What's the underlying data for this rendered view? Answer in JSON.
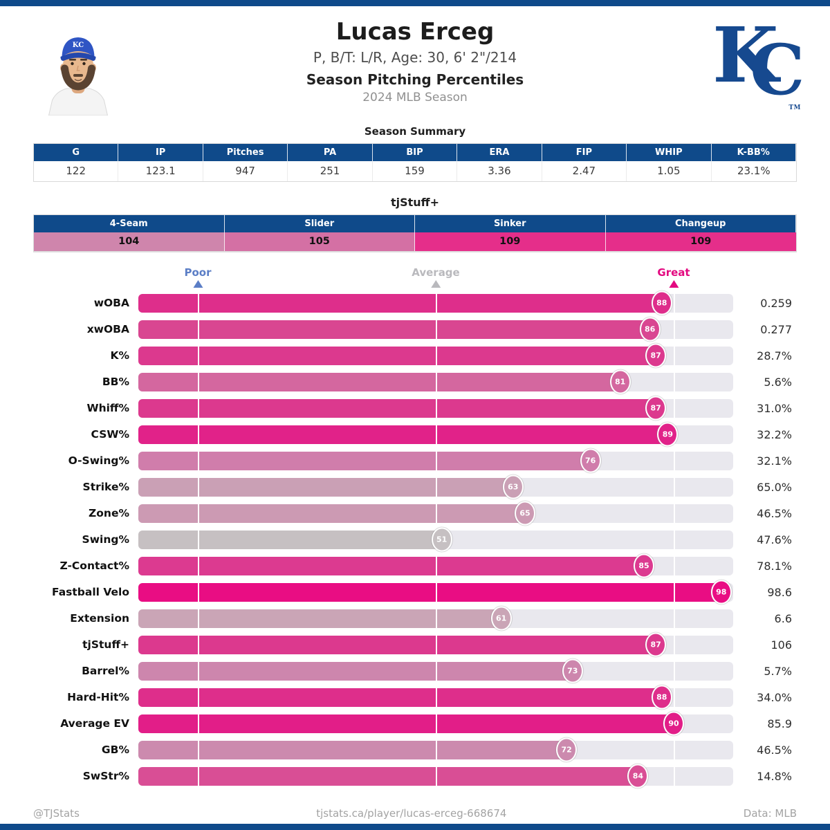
{
  "brand": {
    "bar_blue": "#0f4a8a",
    "royals_blue": "#16498f",
    "magenta": "#e5077f"
  },
  "header": {
    "name": "Lucas Erceg",
    "bio": "P, B/T: L/R, Age: 30, 6' 2\"/214",
    "subtitle": "Season Pitching Percentiles",
    "season": "2024 MLB Season",
    "logo": {
      "k": "K",
      "c": "C",
      "tm": "TM"
    }
  },
  "season_summary": {
    "title": "Season Summary",
    "columns": [
      "G",
      "IP",
      "Pitches",
      "PA",
      "BIP",
      "ERA",
      "FIP",
      "WHIP",
      "K-BB%"
    ],
    "values": [
      "122",
      "123.1",
      "947",
      "251",
      "159",
      "3.36",
      "2.47",
      "1.05",
      "23.1%"
    ]
  },
  "tjstuff": {
    "title": "tjStuff+",
    "columns": [
      "4-Seam",
      "Slider",
      "Sinker",
      "Changeup"
    ],
    "values": [
      "104",
      "105",
      "109",
      "109"
    ],
    "value_colors": [
      "#cf85ac",
      "#d470a4",
      "#e52e8a",
      "#e52e8a"
    ]
  },
  "chart_data": {
    "type": "bar",
    "title": "Season Pitching Percentiles",
    "subtitle": "2024 MLB Season",
    "xlim": [
      0,
      100
    ],
    "track_color": "#e9e8ee",
    "reference_lines": [
      10,
      50,
      90
    ],
    "axis_markers": [
      {
        "label": "Poor",
        "position": 10,
        "color": "#5b7ec6"
      },
      {
        "label": "Average",
        "position": 50,
        "color": "#b9b9bd"
      },
      {
        "label": "Great",
        "position": 90,
        "color": "#e30980"
      }
    ],
    "rows": [
      {
        "label": "wOBA",
        "percentile": 88,
        "value": "0.259",
        "color": "#de2e8b"
      },
      {
        "label": "xwOBA",
        "percentile": 86,
        "value": "0.277",
        "color": "#d94691"
      },
      {
        "label": "K%",
        "percentile": 87,
        "value": "28.7%",
        "color": "#dc398e"
      },
      {
        "label": "BB%",
        "percentile": 81,
        "value": "5.6%",
        "color": "#d4679f"
      },
      {
        "label": "Whiff%",
        "percentile": 87,
        "value": "31.0%",
        "color": "#dc398e"
      },
      {
        "label": "CSW%",
        "percentile": 89,
        "value": "32.2%",
        "color": "#e12289"
      },
      {
        "label": "O-Swing%",
        "percentile": 76,
        "value": "32.1%",
        "color": "#d07dab"
      },
      {
        "label": "Strike%",
        "percentile": 63,
        "value": "65.0%",
        "color": "#caa0b5"
      },
      {
        "label": "Zone%",
        "percentile": 65,
        "value": "46.5%",
        "color": "#cc9ab3"
      },
      {
        "label": "Swing%",
        "percentile": 51,
        "value": "47.6%",
        "color": "#c6c0c2"
      },
      {
        "label": "Z-Contact%",
        "percentile": 85,
        "value": "78.1%",
        "color": "#dc3a90"
      },
      {
        "label": "Fastball Velo",
        "percentile": 98,
        "value": "98.6",
        "color": "#e90d83"
      },
      {
        "label": "Extension",
        "percentile": 61,
        "value": "6.6",
        "color": "#caa5b6"
      },
      {
        "label": "tjStuff+",
        "percentile": 87,
        "value": "106",
        "color": "#dc398e"
      },
      {
        "label": "Barrel%",
        "percentile": 73,
        "value": "5.7%",
        "color": "#cd86ad"
      },
      {
        "label": "Hard-Hit%",
        "percentile": 88,
        "value": "34.0%",
        "color": "#de2e8b"
      },
      {
        "label": "Average EV",
        "percentile": 90,
        "value": "85.9",
        "color": "#e21e88"
      },
      {
        "label": "GB%",
        "percentile": 72,
        "value": "46.5%",
        "color": "#cc8aae"
      },
      {
        "label": "SwStr%",
        "percentile": 84,
        "value": "14.8%",
        "color": "#d94e95"
      }
    ]
  },
  "footer": {
    "left": "@TJStats",
    "center": "tjstats.ca/player/lucas-erceg-668674",
    "right": "Data: MLB"
  }
}
